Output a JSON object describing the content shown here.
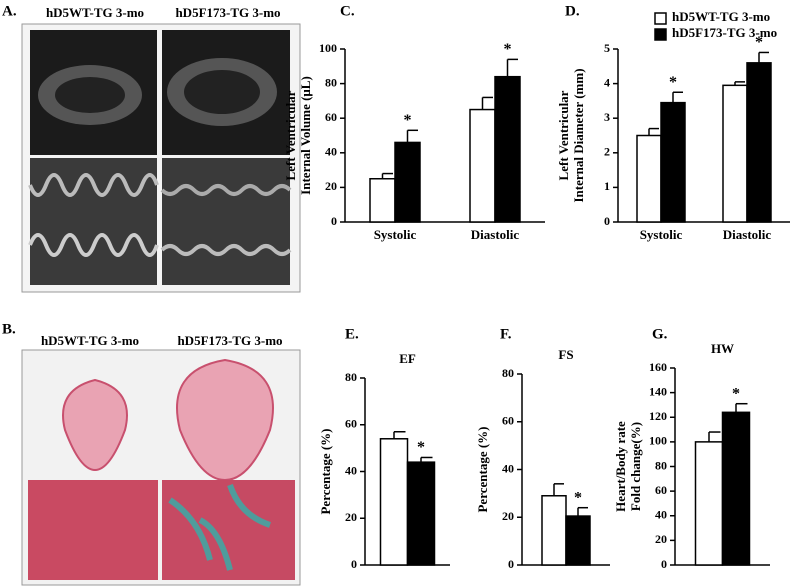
{
  "panels": {
    "a": {
      "label": "A.",
      "captions": [
        "hD5WT-TG 3-mo",
        "hD5F173-TG 3-mo"
      ]
    },
    "b": {
      "label": "B.",
      "captions": [
        "hD5WT-TG 3-mo",
        "hD5F173-TG 3-mo"
      ]
    }
  },
  "chart_data": [
    {
      "type": "bar",
      "panel": "C.",
      "ylabel": [
        "Left Ventricular",
        "Internal Volume (μL)"
      ],
      "categories": [
        "Systolic",
        "Diastolic"
      ],
      "ylim": [
        0,
        100
      ],
      "yticks": [
        0,
        20,
        40,
        60,
        80,
        100
      ],
      "series": [
        {
          "name": "hD5WT-TG 3-mo",
          "color": "#ffffff",
          "values": [
            25,
            65
          ],
          "errors": [
            3,
            7
          ]
        },
        {
          "name": "hD5F173-TG 3-mo",
          "color": "#000000",
          "values": [
            46,
            84
          ],
          "errors": [
            7,
            10
          ],
          "significance": [
            "*",
            "*"
          ]
        }
      ]
    },
    {
      "type": "bar",
      "panel": "D.",
      "ylabel": [
        "Left Ventricular",
        "Internal Diameter (mm)"
      ],
      "legend": "top",
      "categories": [
        "Systolic",
        "Diastolic"
      ],
      "ylim": [
        0,
        5
      ],
      "yticks": [
        0,
        1,
        2,
        3,
        4,
        5
      ],
      "series": [
        {
          "name": "hD5WT-TG 3-mo",
          "color": "#ffffff",
          "values": [
            2.5,
            3.95
          ],
          "errors": [
            0.2,
            0.1
          ]
        },
        {
          "name": "hD5F173-TG 3-mo",
          "color": "#000000",
          "values": [
            3.45,
            4.6
          ],
          "errors": [
            0.3,
            0.3
          ],
          "significance": [
            "*",
            "*"
          ]
        }
      ]
    },
    {
      "type": "bar",
      "panel": "E.",
      "title": "EF",
      "ylabel": [
        "Percentage (%)"
      ],
      "categories": [
        null
      ],
      "ylim": [
        0,
        80
      ],
      "yticks": [
        0,
        20,
        40,
        60,
        80
      ],
      "series": [
        {
          "name": "hD5WT-TG 3-mo",
          "color": "#ffffff",
          "values": [
            54
          ],
          "errors": [
            3
          ]
        },
        {
          "name": "hD5F173-TG 3-mo",
          "color": "#000000",
          "values": [
            44
          ],
          "errors": [
            2
          ],
          "significance": [
            "*"
          ]
        }
      ]
    },
    {
      "type": "bar",
      "panel": "F.",
      "title": "FS",
      "ylabel": [
        "Percentage (%)"
      ],
      "categories": [
        null
      ],
      "ylim": [
        0,
        80
      ],
      "yticks": [
        0,
        20,
        40,
        60,
        80
      ],
      "series": [
        {
          "name": "hD5WT-TG 3-mo",
          "color": "#ffffff",
          "values": [
            29
          ],
          "errors": [
            5
          ]
        },
        {
          "name": "hD5F173-TG 3-mo",
          "color": "#000000",
          "values": [
            20.5
          ],
          "errors": [
            3.5
          ],
          "significance": [
            "*"
          ]
        }
      ]
    },
    {
      "type": "bar",
      "panel": "G.",
      "title": "HW",
      "ylabel": [
        "Heart/Body rate",
        "Fold change(%)"
      ],
      "categories": [
        null
      ],
      "ylim": [
        0,
        160
      ],
      "yticks": [
        0,
        20,
        40,
        60,
        80,
        100,
        120,
        140,
        160
      ],
      "series": [
        {
          "name": "hD5WT-TG 3-mo",
          "color": "#ffffff",
          "values": [
            100
          ],
          "errors": [
            8
          ]
        },
        {
          "name": "hD5F173-TG 3-mo",
          "color": "#000000",
          "values": [
            124
          ],
          "errors": [
            7
          ],
          "significance": [
            "*"
          ]
        }
      ]
    }
  ]
}
